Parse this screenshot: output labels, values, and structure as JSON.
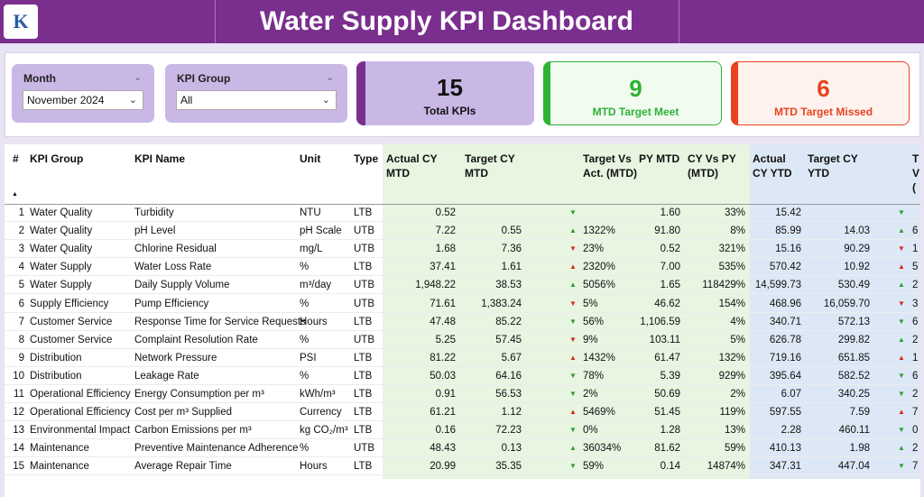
{
  "header": {
    "title": "Water Supply KPI Dashboard",
    "logo_text": "K"
  },
  "filters": {
    "month": {
      "label": "Month",
      "value": "November 2024"
    },
    "kpi_group": {
      "label": "KPI Group",
      "value": "All"
    }
  },
  "cards": {
    "total": {
      "value": "15",
      "caption": "Total KPIs"
    },
    "meet": {
      "value": "9",
      "caption": "MTD Target Meet"
    },
    "missed": {
      "value": "6",
      "caption": "MTD Target Missed"
    }
  },
  "colors": {
    "header_bg": "#7a2f8e",
    "meet": "#2db235",
    "missed": "#e8431e",
    "up": "#2d9a35",
    "down": "#d8261c"
  },
  "table": {
    "headers": {
      "num": "#",
      "group": "KPI Group",
      "name": "KPI Name",
      "unit": "Unit",
      "type": "Type",
      "actual_mtd": "Actual CY MTD",
      "target_mtd": "Target CY MTD",
      "tva_mtd": "Target Vs Act. (MTD)",
      "py_mtd": "PY MTD",
      "cyvspy_mtd": "CY Vs PY (MTD)",
      "actual_ytd": "Actual CY YTD",
      "target_ytd": "Target CY YTD",
      "tva_ytd_partial": "T V ("
    },
    "rows": [
      {
        "num": "1",
        "group": "Water Quality",
        "name": "Turbidity",
        "unit": "NTU",
        "type": "LTB",
        "actual_mtd": "0.52",
        "target_mtd": "",
        "tri_mtd": "down-green",
        "tva_mtd": "",
        "py_mtd": "1.60",
        "cyvspy": "33%",
        "actual_ytd": "15.42",
        "target_ytd": "",
        "tri_ytd": "down-green",
        "tva_ytd": ""
      },
      {
        "num": "2",
        "group": "Water Quality",
        "name": "pH Level",
        "unit": "pH Scale",
        "type": "UTB",
        "actual_mtd": "7.22",
        "target_mtd": "0.55",
        "tri_mtd": "up-green",
        "tva_mtd": "1322%",
        "py_mtd": "91.80",
        "cyvspy": "8%",
        "actual_ytd": "85.99",
        "target_ytd": "14.03",
        "tri_ytd": "up-green",
        "tva_ytd": "6"
      },
      {
        "num": "3",
        "group": "Water Quality",
        "name": "Chlorine Residual",
        "unit": "mg/L",
        "type": "UTB",
        "actual_mtd": "1.68",
        "target_mtd": "7.36",
        "tri_mtd": "down-red",
        "tva_mtd": "23%",
        "py_mtd": "0.52",
        "cyvspy": "321%",
        "actual_ytd": "15.16",
        "target_ytd": "90.29",
        "tri_ytd": "down-red",
        "tva_ytd": "1"
      },
      {
        "num": "4",
        "group": "Water Supply",
        "name": "Water Loss Rate",
        "unit": "%",
        "type": "LTB",
        "actual_mtd": "37.41",
        "target_mtd": "1.61",
        "tri_mtd": "up-red",
        "tva_mtd": "2320%",
        "py_mtd": "7.00",
        "cyvspy": "535%",
        "actual_ytd": "570.42",
        "target_ytd": "10.92",
        "tri_ytd": "up-red",
        "tva_ytd": "5"
      },
      {
        "num": "5",
        "group": "Water Supply",
        "name": "Daily Supply Volume",
        "unit": "m³/day",
        "type": "UTB",
        "actual_mtd": "1,948.22",
        "target_mtd": "38.53",
        "tri_mtd": "up-green",
        "tva_mtd": "5056%",
        "py_mtd": "1.65",
        "cyvspy": "118429%",
        "actual_ytd": "14,599.73",
        "target_ytd": "530.49",
        "tri_ytd": "up-green",
        "tva_ytd": "2"
      },
      {
        "num": "6",
        "group": "Supply Efficiency",
        "name": "Pump Efficiency",
        "unit": "%",
        "type": "UTB",
        "actual_mtd": "71.61",
        "target_mtd": "1,383.24",
        "tri_mtd": "down-red",
        "tva_mtd": "5%",
        "py_mtd": "46.62",
        "cyvspy": "154%",
        "actual_ytd": "468.96",
        "target_ytd": "16,059.70",
        "tri_ytd": "down-red",
        "tva_ytd": "3"
      },
      {
        "num": "7",
        "group": "Customer Service",
        "name": "Response Time for Service Requests",
        "unit": "Hours",
        "type": "LTB",
        "actual_mtd": "47.48",
        "target_mtd": "85.22",
        "tri_mtd": "down-green",
        "tva_mtd": "56%",
        "py_mtd": "1,106.59",
        "cyvspy": "4%",
        "actual_ytd": "340.71",
        "target_ytd": "572.13",
        "tri_ytd": "down-green",
        "tva_ytd": "6"
      },
      {
        "num": "8",
        "group": "Customer Service",
        "name": "Complaint Resolution Rate",
        "unit": "%",
        "type": "UTB",
        "actual_mtd": "5.25",
        "target_mtd": "57.45",
        "tri_mtd": "down-red",
        "tva_mtd": "9%",
        "py_mtd": "103.11",
        "cyvspy": "5%",
        "actual_ytd": "626.78",
        "target_ytd": "299.82",
        "tri_ytd": "up-green",
        "tva_ytd": "2"
      },
      {
        "num": "9",
        "group": "Distribution",
        "name": "Network Pressure",
        "unit": "PSI",
        "type": "LTB",
        "actual_mtd": "81.22",
        "target_mtd": "5.67",
        "tri_mtd": "up-red",
        "tva_mtd": "1432%",
        "py_mtd": "61.47",
        "cyvspy": "132%",
        "actual_ytd": "719.16",
        "target_ytd": "651.85",
        "tri_ytd": "up-red",
        "tva_ytd": "1"
      },
      {
        "num": "10",
        "group": "Distribution",
        "name": "Leakage Rate",
        "unit": "%",
        "type": "LTB",
        "actual_mtd": "50.03",
        "target_mtd": "64.16",
        "tri_mtd": "down-green",
        "tva_mtd": "78%",
        "py_mtd": "5.39",
        "cyvspy": "929%",
        "actual_ytd": "395.64",
        "target_ytd": "582.52",
        "tri_ytd": "down-green",
        "tva_ytd": "6"
      },
      {
        "num": "11",
        "group": "Operational Efficiency",
        "name": "Energy Consumption per m³",
        "unit": "kWh/m³",
        "type": "LTB",
        "actual_mtd": "0.91",
        "target_mtd": "56.53",
        "tri_mtd": "down-green",
        "tva_mtd": "2%",
        "py_mtd": "50.69",
        "cyvspy": "2%",
        "actual_ytd": "6.07",
        "target_ytd": "340.25",
        "tri_ytd": "down-green",
        "tva_ytd": "2"
      },
      {
        "num": "12",
        "group": "Operational Efficiency",
        "name": "Cost per m³ Supplied",
        "unit": "Currency",
        "type": "LTB",
        "actual_mtd": "61.21",
        "target_mtd": "1.12",
        "tri_mtd": "up-red",
        "tva_mtd": "5469%",
        "py_mtd": "51.45",
        "cyvspy": "119%",
        "actual_ytd": "597.55",
        "target_ytd": "7.59",
        "tri_ytd": "up-red",
        "tva_ytd": "7"
      },
      {
        "num": "13",
        "group": "Environmental Impact",
        "name": "Carbon Emissions per m³",
        "unit": "kg CO₂/m³",
        "type": "LTB",
        "actual_mtd": "0.16",
        "target_mtd": "72.23",
        "tri_mtd": "down-green",
        "tva_mtd": "0%",
        "py_mtd": "1.28",
        "cyvspy": "13%",
        "actual_ytd": "2.28",
        "target_ytd": "460.11",
        "tri_ytd": "down-green",
        "tva_ytd": "0"
      },
      {
        "num": "14",
        "group": "Maintenance",
        "name": "Preventive Maintenance Adherence",
        "unit": "%",
        "type": "UTB",
        "actual_mtd": "48.43",
        "target_mtd": "0.13",
        "tri_mtd": "up-green",
        "tva_mtd": "36034%",
        "py_mtd": "81.62",
        "cyvspy": "59%",
        "actual_ytd": "410.13",
        "target_ytd": "1.98",
        "tri_ytd": "up-green",
        "tva_ytd": "2"
      },
      {
        "num": "15",
        "group": "Maintenance",
        "name": "Average Repair Time",
        "unit": "Hours",
        "type": "LTB",
        "actual_mtd": "20.99",
        "target_mtd": "35.35",
        "tri_mtd": "down-green",
        "tva_mtd": "59%",
        "py_mtd": "0.14",
        "cyvspy": "14874%",
        "actual_ytd": "347.31",
        "target_ytd": "447.04",
        "tri_ytd": "down-green",
        "tva_ytd": "7"
      }
    ]
  }
}
